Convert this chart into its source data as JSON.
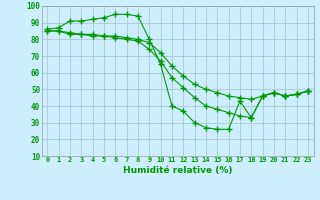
{
  "xlabel": "Humidité relative (%)",
  "background_color": "#cceeff",
  "grid_color": "#aacccc",
  "line_color": "#009900",
  "xlim": [
    -0.5,
    23.5
  ],
  "ylim": [
    10,
    100
  ],
  "yticks": [
    10,
    20,
    30,
    40,
    50,
    60,
    70,
    80,
    90,
    100
  ],
  "xticks": [
    0,
    1,
    2,
    3,
    4,
    5,
    6,
    7,
    8,
    9,
    10,
    11,
    12,
    13,
    14,
    15,
    16,
    17,
    18,
    19,
    20,
    21,
    22,
    23
  ],
  "line1_x": [
    0,
    1,
    2,
    3,
    4,
    5,
    6,
    7,
    8,
    9,
    10,
    11,
    12,
    13,
    14,
    15,
    16,
    17,
    18,
    19,
    20,
    21,
    22,
    23
  ],
  "line1_y": [
    86,
    87,
    91,
    91,
    92,
    93,
    95,
    95,
    94,
    80,
    65,
    40,
    37,
    30,
    27,
    26,
    26,
    43,
    33,
    46,
    48,
    46,
    47,
    49
  ],
  "line2_x": [
    0,
    1,
    2,
    3,
    4,
    5,
    6,
    7,
    8,
    9,
    10,
    11,
    12,
    13,
    14,
    15,
    16,
    17,
    18,
    19,
    20,
    21,
    22,
    23
  ],
  "line2_y": [
    85,
    85,
    84,
    83,
    83,
    82,
    82,
    81,
    80,
    78,
    72,
    64,
    58,
    53,
    50,
    48,
    46,
    45,
    44,
    46,
    48,
    46,
    47,
    49
  ],
  "line3_x": [
    0,
    1,
    2,
    3,
    4,
    5,
    6,
    7,
    8,
    9,
    10,
    11,
    12,
    13,
    14,
    15,
    16,
    17,
    18,
    19,
    20,
    21,
    22,
    23
  ],
  "line3_y": [
    85,
    85,
    83,
    83,
    82,
    82,
    81,
    80,
    79,
    74,
    67,
    57,
    51,
    45,
    40,
    38,
    36,
    34,
    33,
    46,
    48,
    46,
    47,
    49
  ]
}
